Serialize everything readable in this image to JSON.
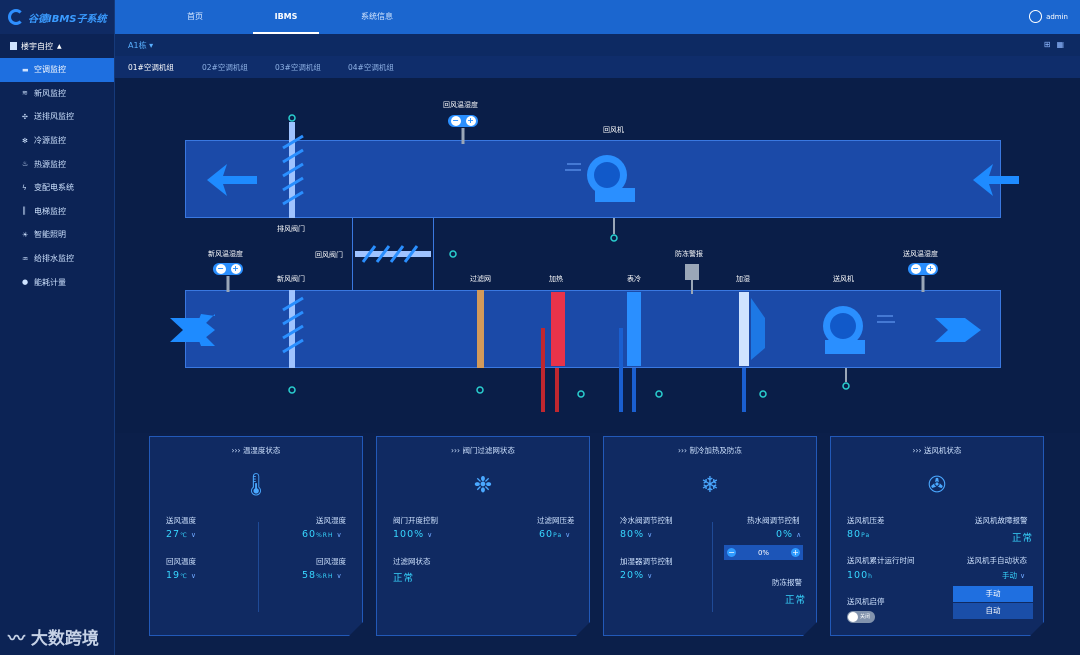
{
  "app": {
    "title": "谷德IBMS子系统"
  },
  "nav_tabs": [
    "首页",
    "IBMS",
    "系统信息"
  ],
  "user": {
    "name": "admin"
  },
  "sidebar": {
    "group": "楼宇自控",
    "items": [
      {
        "label": "空调监控",
        "icon": "ac-icon"
      },
      {
        "label": "新风监控",
        "icon": "fresh-air-icon"
      },
      {
        "label": "送排风监控",
        "icon": "fan-icon"
      },
      {
        "label": "冷源监控",
        "icon": "snowflake-icon"
      },
      {
        "label": "热源监控",
        "icon": "flame-icon"
      },
      {
        "label": "变配电系统",
        "icon": "lightning-icon"
      },
      {
        "label": "电梯监控",
        "icon": "elevator-icon"
      },
      {
        "label": "智能照明",
        "icon": "bulb-icon"
      },
      {
        "label": "给排水监控",
        "icon": "water-drop-icon"
      },
      {
        "label": "能耗计量",
        "icon": "meter-icon"
      }
    ]
  },
  "building": {
    "selected": "A1栋"
  },
  "units": [
    "01#空调机组",
    "02#空调机组",
    "03#空调机组",
    "04#空调机组"
  ],
  "diagram": {
    "return_temp_hum": "回风温湿度",
    "return_fan": "回风机",
    "exhaust_damper": "排风阀门",
    "return_damper": "回风阀门",
    "fresh_temp_hum": "新风温湿度",
    "fresh_damper": "新风阀门",
    "filter": "过滤网",
    "heating": "加热",
    "cooling": "表冷",
    "antifreeze_alarm": "防冻警报",
    "humidify": "加湿",
    "supply_fan": "送风机",
    "supply_temp_hum": "送风温湿度"
  },
  "panels": {
    "temp_hum": {
      "title": "温湿度状态",
      "supply_temp_label": "送风温度",
      "supply_temp": "27",
      "temp_unit": "℃",
      "supply_hum_label": "送风湿度",
      "supply_hum": "60",
      "hum_unit": "%RH",
      "return_temp_label": "回风温度",
      "return_temp": "19",
      "return_hum_label": "回风湿度",
      "return_hum": "58"
    },
    "damper": {
      "title": "阀门过滤网状态",
      "opening_label": "阀门开度控制",
      "opening": "100%",
      "filter_dp_label": "过滤网压差",
      "filter_dp": "60",
      "pa_unit": "Pa",
      "filter_state_label": "过滤网状态",
      "filter_state": "正常"
    },
    "heat_cool": {
      "title": "制冷加热及防冻",
      "cold_valve_label": "冷水阀调节控制",
      "cold_valve": "80%",
      "hot_valve_label": "热水阀调节控制",
      "hot_valve": "0%",
      "stepper_value": "0%",
      "humidifier_label": "加湿器调节控制",
      "humidifier": "20%",
      "antifreeze_label": "防冻报警",
      "antifreeze": "正常"
    },
    "fan": {
      "title": "送风机状态",
      "pressure_label": "送风机压差",
      "pressure": "80",
      "pressure_unit": "Pa",
      "fault_label": "送风机故障报警",
      "fault": "正常",
      "runtime_label": "送风机累计运行时间",
      "runtime": "100",
      "runtime_unit": "h",
      "mode_label": "送风机手自动状态",
      "mode": "手动",
      "start_label": "送风机启停",
      "toggle": "关闭",
      "mode_options": [
        "手动",
        "自动"
      ]
    }
  },
  "watermark": "大数跨境",
  "colors": {
    "accent": "#1b66cf",
    "value": "#37d6ff",
    "heat": "#e8334a",
    "cool": "#2a8fff"
  }
}
